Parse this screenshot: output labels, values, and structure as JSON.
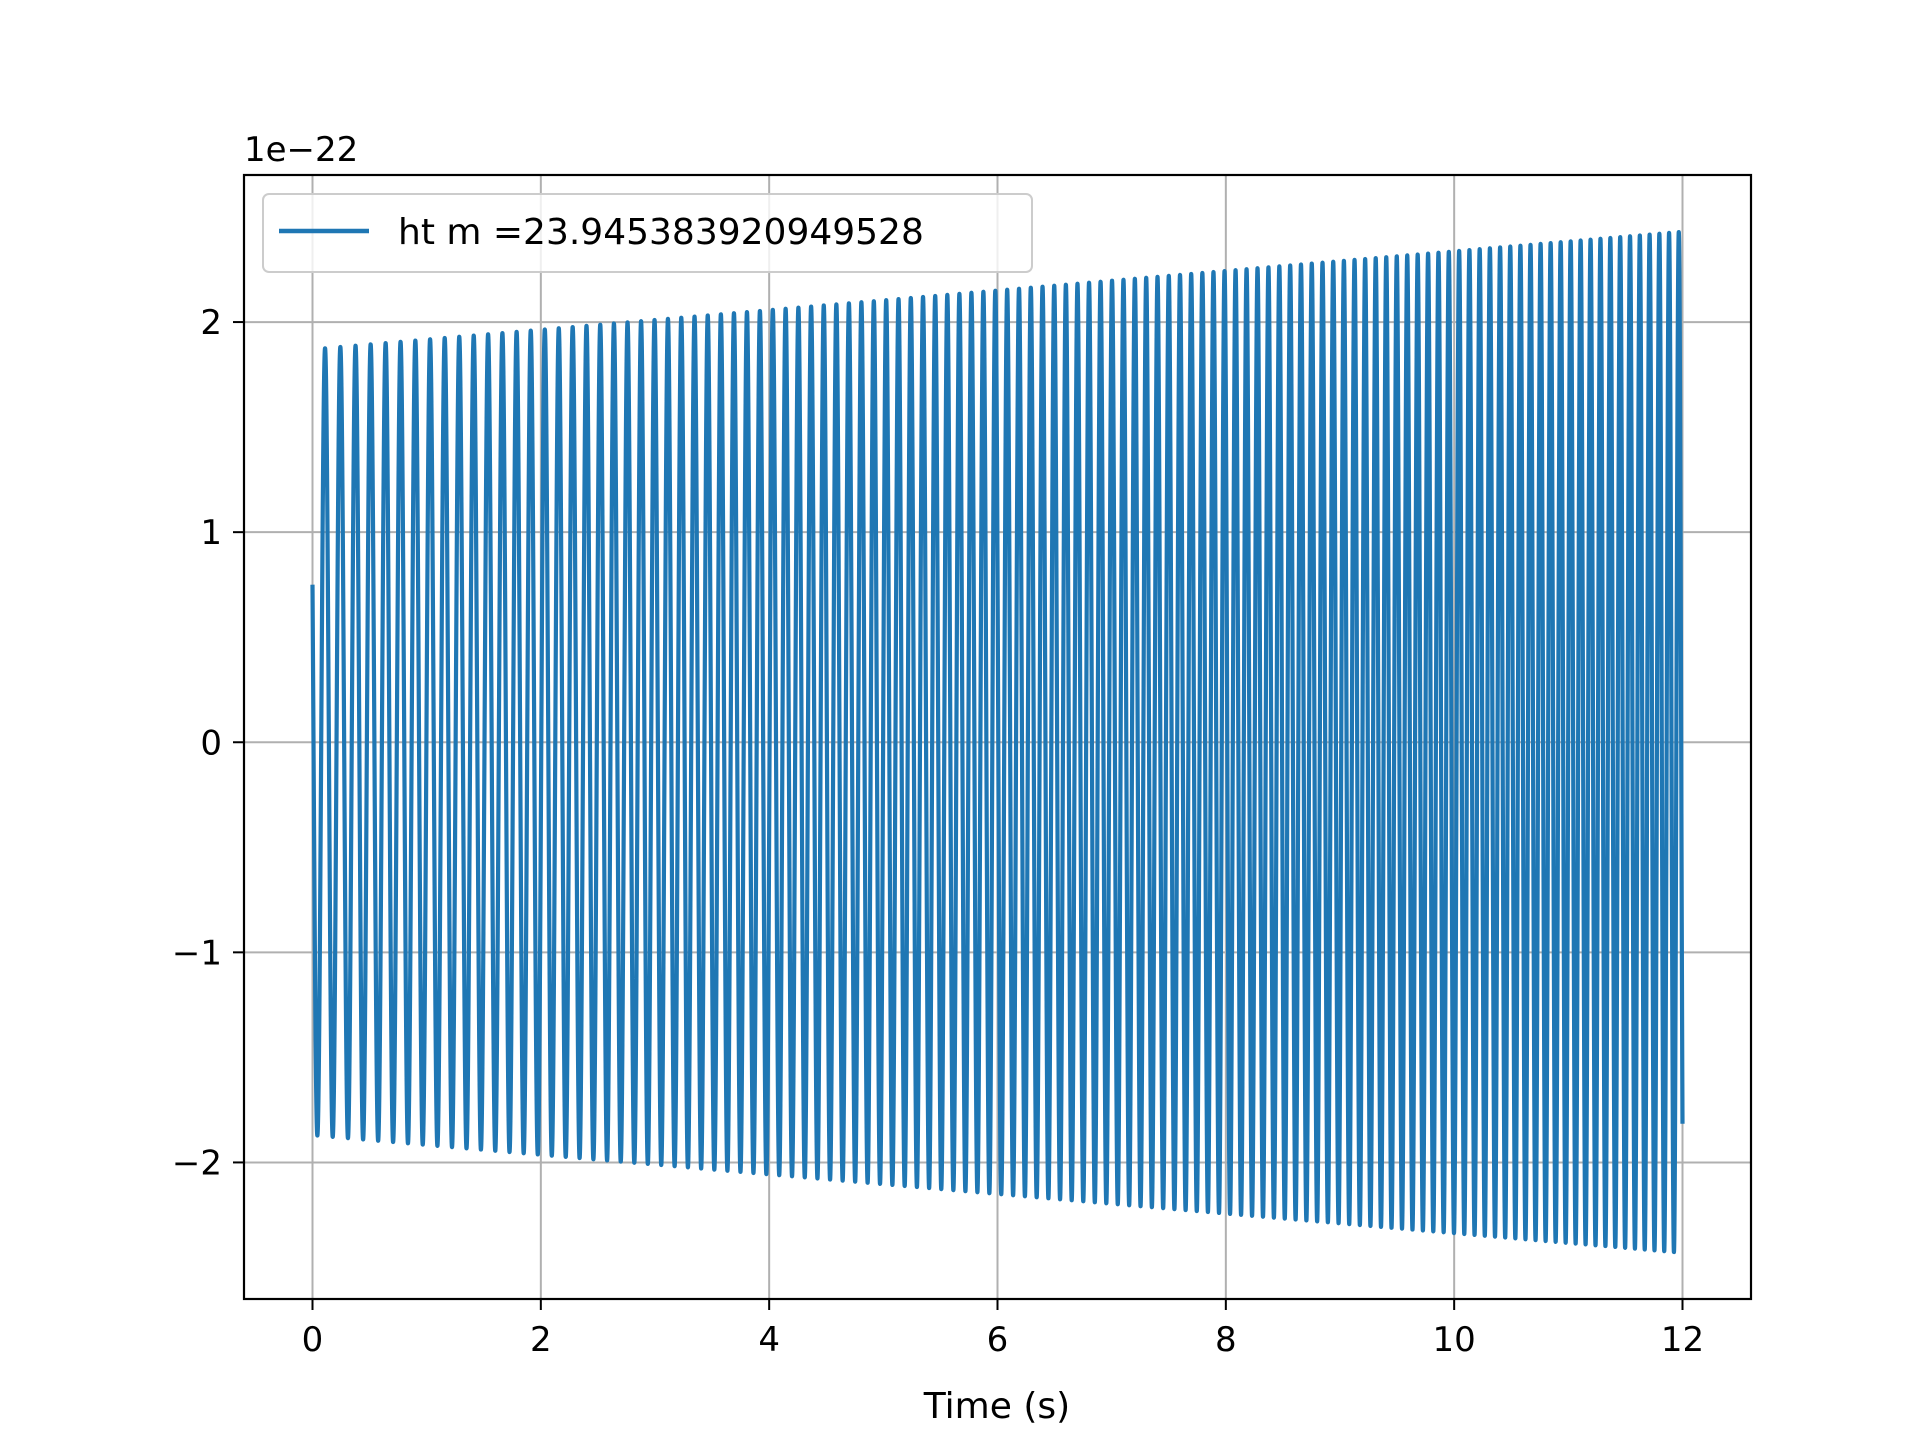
{
  "chart_data": {
    "type": "line",
    "title": "",
    "xlabel": "Time (s)",
    "ylabel": "",
    "offset_text": "1e−22",
    "xlim": [
      -0.6,
      12.6
    ],
    "ylim": [
      -2.65e-22,
      2.7e-22
    ],
    "xticks": [
      0,
      2,
      4,
      6,
      8,
      10,
      12
    ],
    "xtick_labels": [
      "0",
      "2",
      "4",
      "6",
      "8",
      "10",
      "12"
    ],
    "yticks": [
      -2e-22,
      -1e-22,
      0,
      1e-22,
      2e-22
    ],
    "ytick_labels": [
      "−2",
      "−1",
      "0",
      "1",
      "2"
    ],
    "grid": true,
    "legend_position": "upper-left",
    "series": [
      {
        "name": "ht m =23.945383920949528",
        "color": "#1f77b4",
        "waveform": "chirp",
        "t_start": 0,
        "t_end": 12,
        "amplitude_start": 1.87e-22,
        "amplitude_end": 2.43e-22,
        "frequency_start_hz": 7.4,
        "frequency_end_hz": 11.8,
        "initial_value": 7.5e-23
      }
    ]
  }
}
